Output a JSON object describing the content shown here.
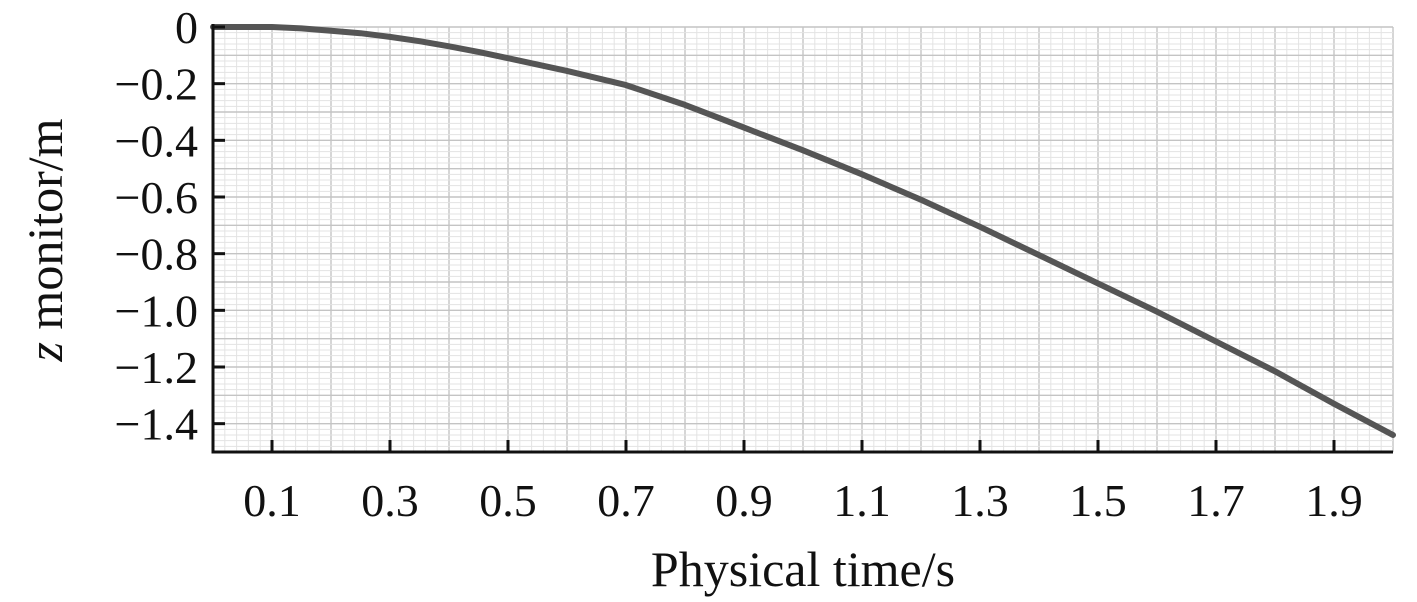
{
  "chart_data": {
    "type": "line",
    "xlabel": "Physical time/s",
    "ylabel_italic": "z",
    "ylabel_rest": " monitor/m",
    "xlim": [
      0,
      2.0
    ],
    "ylim": [
      -1.5,
      0
    ],
    "xticks": [
      0.1,
      0.3,
      0.5,
      0.7,
      0.9,
      1.1,
      1.3,
      1.5,
      1.7,
      1.9
    ],
    "xtick_labels": [
      "0.1",
      "0.3",
      "0.5",
      "0.7",
      "0.9",
      "1.1",
      "1.3",
      "1.5",
      "1.7",
      "1.9"
    ],
    "yticks": [
      0,
      -0.2,
      -0.4,
      -0.6,
      -0.8,
      -1.0,
      -1.2,
      -1.4
    ],
    "ytick_labels": [
      "0",
      "−0.2",
      "−0.4",
      "−0.6",
      "−0.8",
      "−1.0",
      "−1.2",
      "−1.4"
    ],
    "grid": true,
    "line_color": "#555555",
    "series": [
      {
        "x": [
          0,
          0.05,
          0.1,
          0.15,
          0.2,
          0.25,
          0.3,
          0.35,
          0.4,
          0.45,
          0.5,
          0.6,
          0.7,
          0.8,
          0.9,
          1.0,
          1.1,
          1.2,
          1.3,
          1.4,
          1.5,
          1.6,
          1.7,
          1.8,
          1.9,
          2.0
        ],
        "y": [
          0,
          0,
          0,
          -0.005,
          -0.013,
          -0.022,
          -0.035,
          -0.05,
          -0.068,
          -0.088,
          -0.11,
          -0.155,
          -0.205,
          -0.275,
          -0.355,
          -0.435,
          -0.52,
          -0.61,
          -0.705,
          -0.805,
          -0.905,
          -1.005,
          -1.11,
          -1.215,
          -1.33,
          -1.44
        ]
      }
    ]
  }
}
